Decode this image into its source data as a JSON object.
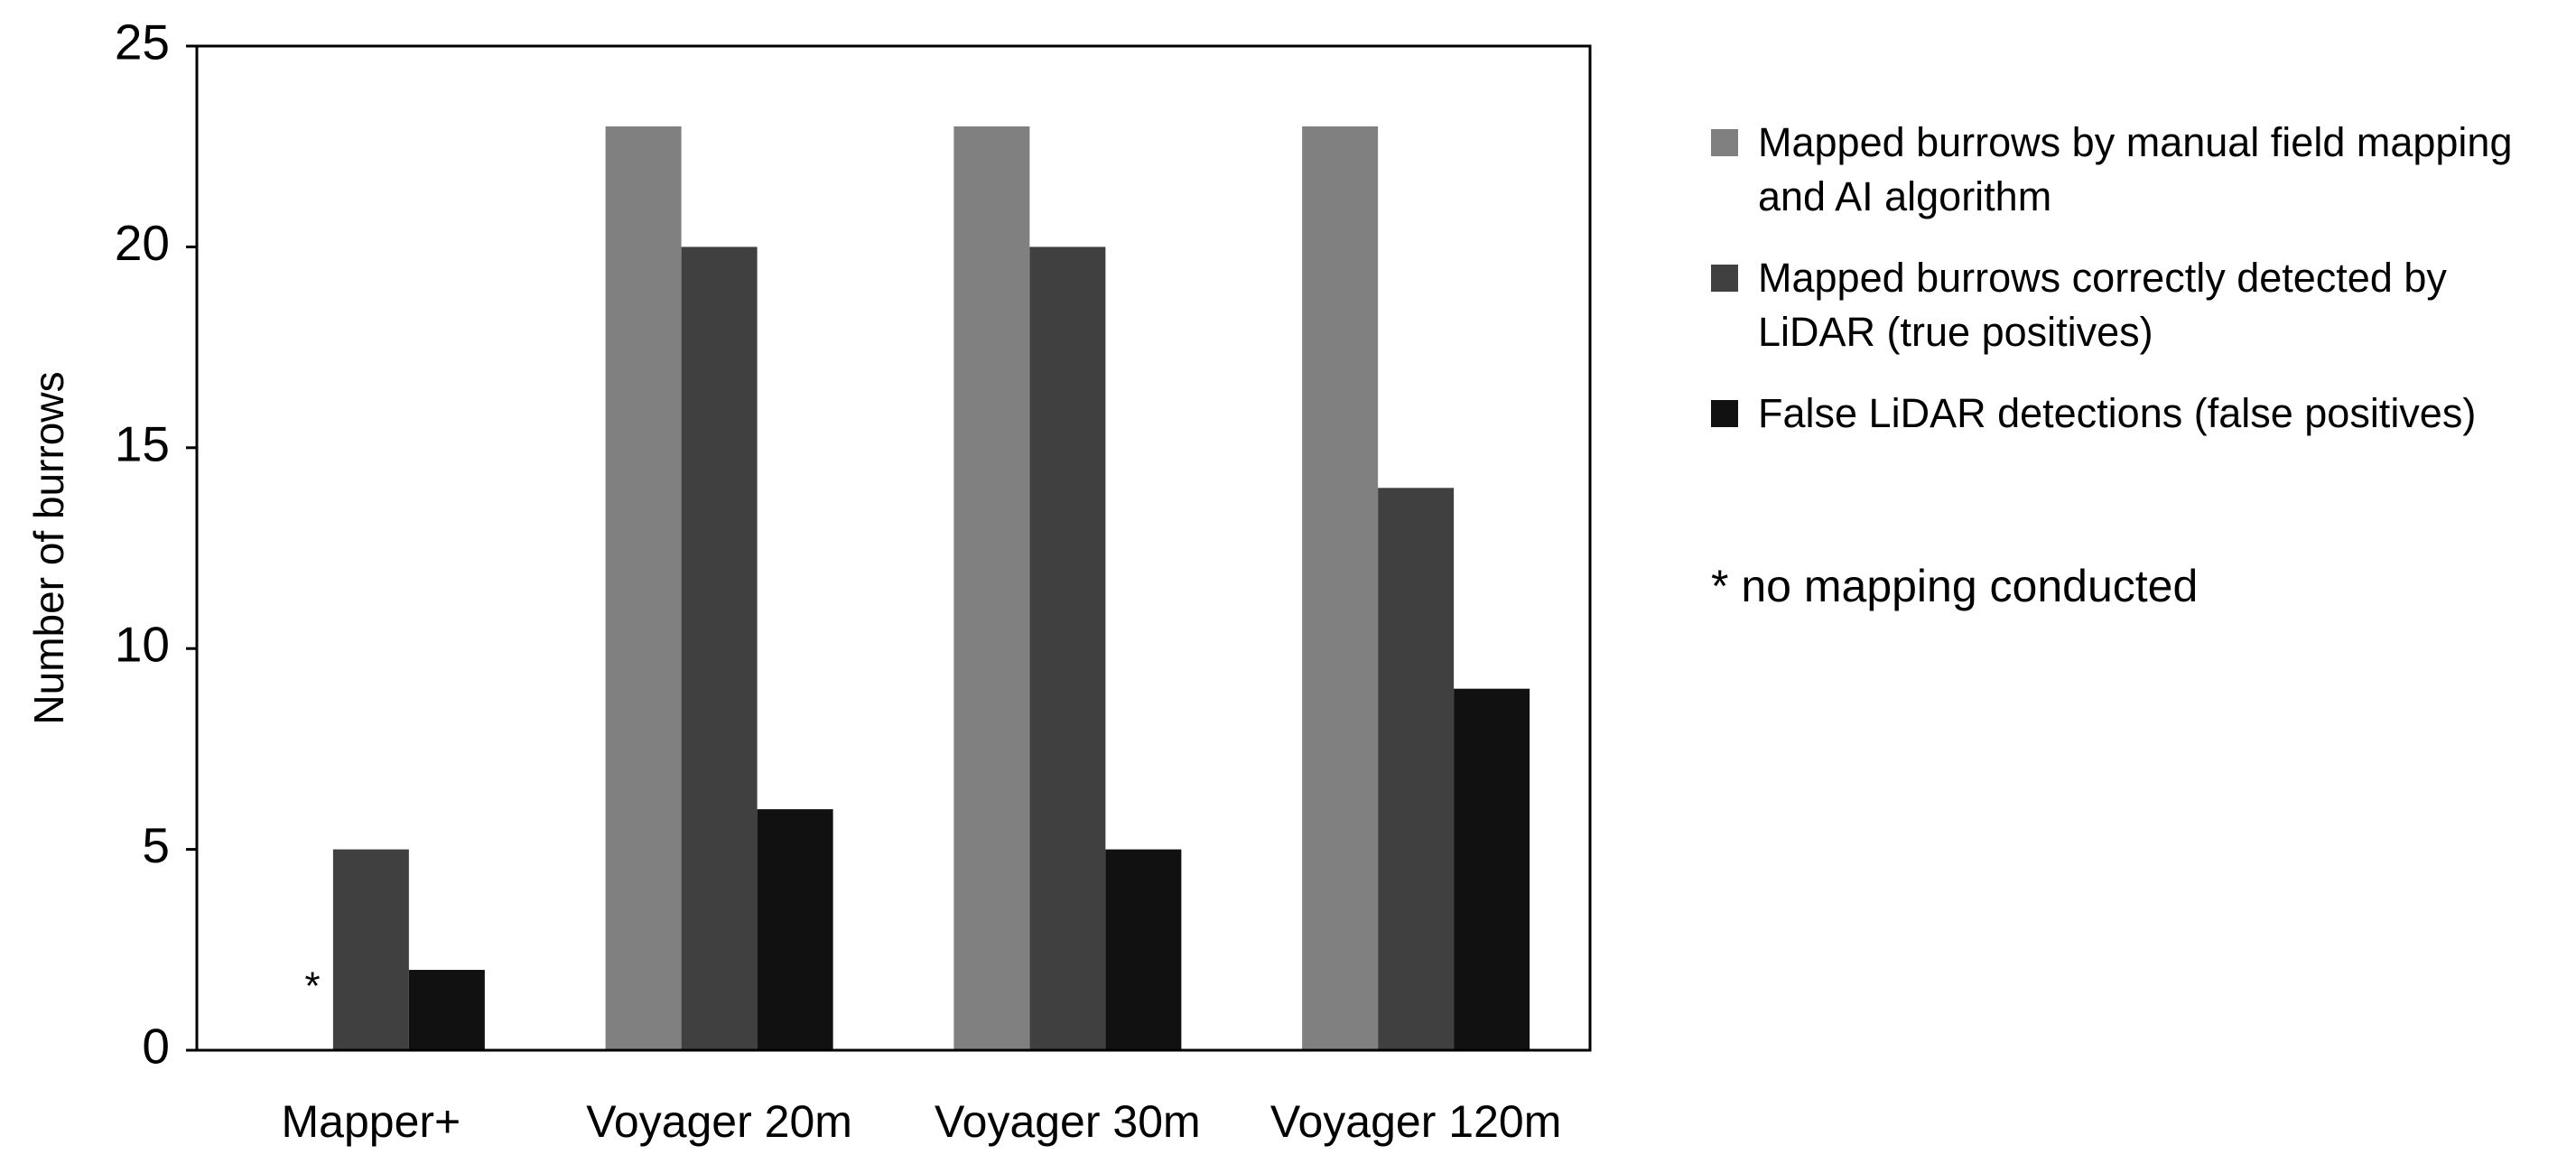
{
  "chart_data": {
    "type": "bar",
    "y_label": "Number of burrows",
    "categories": [
      "Mapper+",
      "Voyager 20m",
      "Voyager 30m",
      "Voyager 120m"
    ],
    "series": [
      {
        "name": "Mapped burrows by manual field mapping and AI algorithm",
        "color": "#808080",
        "values": [
          null,
          23,
          23,
          23
        ]
      },
      {
        "name": "Mapped burrows correctly detected by LiDAR (true positives)",
        "color": "#404040",
        "values": [
          5,
          20,
          20,
          14
        ]
      },
      {
        "name": "False LiDAR detections (false positives)",
        "color": "#111111",
        "values": [
          2,
          6,
          5,
          9
        ]
      }
    ],
    "annotation": "*",
    "legend_note": "* no mapping conducted",
    "ylim": [
      0,
      25
    ],
    "yticks": [
      0,
      5,
      10,
      15,
      20,
      25
    ],
    "grid": false,
    "legend": "right"
  }
}
